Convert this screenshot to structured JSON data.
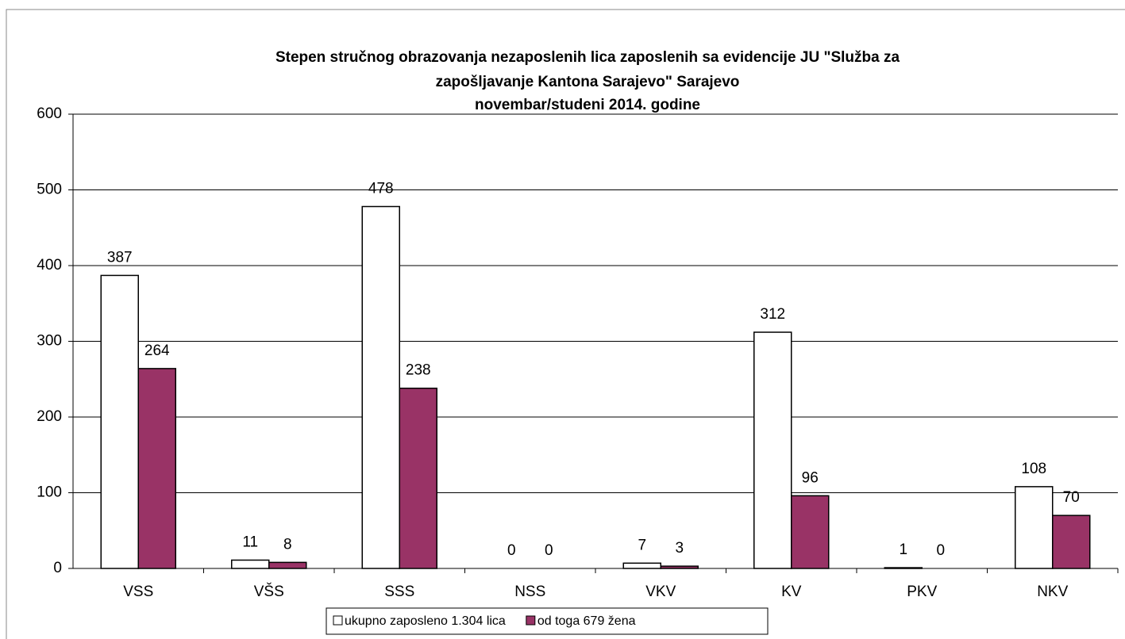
{
  "chart_data": {
    "type": "bar",
    "title": [
      "Stepen stručnog obrazovanja  nezaposlenih  lica zaposlenih sa evidencije JU \"Služba za",
      "zapošljavanje Kantona Sarajevo\"  Sarajevo",
      "novembar/studeni  2014. godine"
    ],
    "categories": [
      "VSS",
      "VŠS",
      "SSS",
      "NSS",
      "VKV",
      "KV",
      "PKV",
      "NKV"
    ],
    "series": [
      {
        "name": "ukupno zaposleno 1.304 lica",
        "color": "#ffffff",
        "values": [
          387,
          11,
          478,
          0,
          7,
          312,
          1,
          108
        ]
      },
      {
        "name": "od toga 679 žena",
        "color": "#993366",
        "values": [
          264,
          8,
          238,
          0,
          3,
          96,
          0,
          70
        ]
      }
    ],
    "ylim": [
      0,
      600
    ],
    "yticks": [
      0,
      100,
      200,
      300,
      400,
      500,
      600
    ],
    "grid": true,
    "legend": "bottom"
  }
}
